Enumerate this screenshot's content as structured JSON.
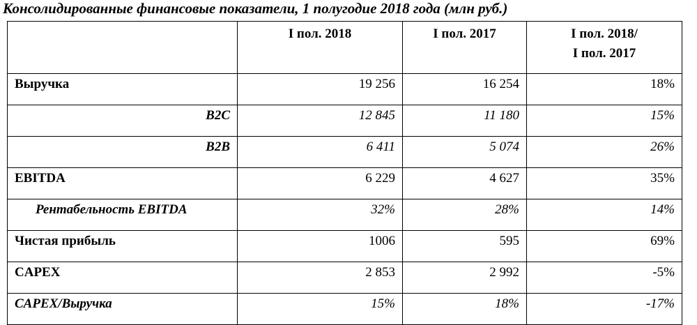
{
  "title": "Консолидированные финансовые показатели, 1 полугодие 2018 года (млн руб.)",
  "table": {
    "header": [
      "I пол. 2018",
      "I пол. 2017",
      "I пол. 2018/\nI пол. 2017"
    ],
    "rows": [
      {
        "label": "Выручка",
        "values": [
          "19 256",
          "16 254",
          "18%"
        ]
      },
      {
        "label": "B2C",
        "values": [
          "12 845",
          "11 180",
          "15%"
        ]
      },
      {
        "label": "B2B",
        "values": [
          "6 411",
          "5 074",
          "26%"
        ]
      },
      {
        "label": "EBITDA",
        "values": [
          "6 229",
          "4 627",
          "35%"
        ]
      },
      {
        "label": "Рентабельность EBITDA",
        "values": [
          "32%",
          "28%",
          "14%"
        ]
      },
      {
        "label": "Чистая прибыль",
        "values": [
          "1006",
          "595",
          "69%"
        ]
      },
      {
        "label": "CAPEX",
        "values": [
          "2 853",
          "2 992",
          "-5%"
        ]
      },
      {
        "label": "CAPEX/Выручка",
        "values": [
          "15%",
          "18%",
          "-17%"
        ]
      }
    ]
  }
}
